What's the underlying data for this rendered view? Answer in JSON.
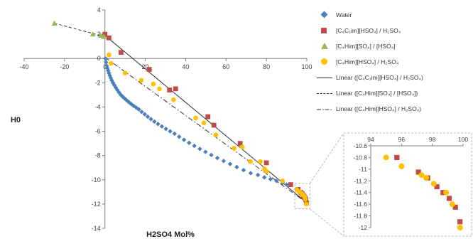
{
  "chart_data": {
    "type": "scatter",
    "xlabel": "H2SO4 Mol%",
    "ylabel": "H0",
    "xlim": [
      -40,
      100
    ],
    "ylim": [
      -14,
      4
    ],
    "x_ticks": [
      -40,
      -20,
      0,
      20,
      40,
      60,
      80,
      100
    ],
    "y_ticks": [
      4,
      2,
      0,
      -2,
      -4,
      -6,
      -8,
      -10,
      -12,
      -14
    ],
    "grid": false,
    "legend_position": "right",
    "series": [
      {
        "name": "Water",
        "marker": "diamond",
        "color": "#4a7ebb",
        "x": [
          0.3,
          0.6,
          0.9,
          1.2,
          1.6,
          2.0,
          2.4,
          2.9,
          3.4,
          4.0,
          4.7,
          5.4,
          6.2,
          7.0,
          7.9,
          8.8,
          9.8,
          10.8,
          11.9,
          13.0,
          14.2,
          15.5,
          16.8,
          18.2,
          19.7,
          21.2,
          22.8,
          24.5,
          26.3,
          28.2,
          30.2,
          32.3,
          34.5,
          36.8,
          39.2,
          41.7,
          44.3,
          47.0,
          49.8,
          52.7,
          55.7,
          58.8,
          62.0,
          65.3,
          68.7,
          72.2,
          75.8,
          79.0,
          82.0,
          85.0,
          88.0,
          90.0
        ],
        "y": [
          0.0,
          -0.3,
          -0.6,
          -0.8,
          -1.0,
          -1.2,
          -1.4,
          -1.6,
          -1.8,
          -2.0,
          -2.2,
          -2.4,
          -2.6,
          -2.8,
          -3.0,
          -3.15,
          -3.3,
          -3.45,
          -3.6,
          -3.75,
          -3.9,
          -4.05,
          -4.2,
          -4.4,
          -4.6,
          -4.8,
          -5.0,
          -5.2,
          -5.4,
          -5.6,
          -5.8,
          -6.0,
          -6.2,
          -6.45,
          -6.7,
          -6.95,
          -7.2,
          -7.45,
          -7.7,
          -7.95,
          -8.2,
          -8.45,
          -8.7,
          -8.95,
          -9.2,
          -9.45,
          -9.6,
          -9.8,
          -9.95,
          -10.1,
          -10.25,
          -10.4
        ]
      },
      {
        "name": "[C₄C₁im][HSO₄] / H₂SO₄",
        "marker": "square",
        "color": "#be4b48",
        "x": [
          0,
          2,
          8,
          22,
          32,
          35,
          51,
          54,
          67,
          80,
          92,
          95.7,
          97.1,
          97.7,
          98.3,
          98.7,
          99.1,
          99.5,
          99.8
        ],
        "y": [
          2.0,
          1.7,
          0.5,
          -0.9,
          -2.6,
          -2.5,
          -4.8,
          -5.5,
          -7.0,
          -8.6,
          -10.4,
          -10.8,
          -11.05,
          -11.15,
          -11.3,
          -11.4,
          -11.5,
          -11.65,
          -11.9
        ]
      },
      {
        "name": "[C₄Him][SO₄] / [HSO₄]",
        "marker": "triangle",
        "color": "#98b954",
        "x": [
          -25,
          -6,
          -2,
          -0.5
        ],
        "y": [
          2.9,
          2.0,
          1.9,
          1.8
        ]
      },
      {
        "name": "[C₄Him][HSO₄] / H₂SO₄",
        "marker": "circle",
        "color": "#ffc000",
        "x": [
          2,
          3,
          10,
          18,
          24,
          27,
          34,
          45,
          49,
          55,
          64,
          68,
          72,
          77,
          79,
          80,
          88,
          95,
          96,
          97.3,
          97.6,
          98.1,
          98.9,
          99.3,
          99.8
        ],
        "y": [
          0.3,
          -0.4,
          -1.2,
          -1.8,
          -2.1,
          -2.5,
          -3.4,
          -4.9,
          -5.3,
          -6.3,
          -7.4,
          -7.3,
          -8.5,
          -8.5,
          -9.1,
          -9.3,
          -10.1,
          -10.8,
          -10.95,
          -11.1,
          -11.15,
          -11.25,
          -11.4,
          -11.6,
          -12.0
        ]
      }
    ],
    "trendlines": [
      {
        "name": "Linear ([C₄C₁im][HSO₄] / H₂SO₄)",
        "style": "solid",
        "color": "#333333",
        "x": [
          0,
          100
        ],
        "y": [
          1.9,
          -11.9
        ]
      },
      {
        "name": "Linear ([C₄Him][SO₄] / [HSO₄])",
        "style": "dashed",
        "color": "#333333",
        "x": [
          -25,
          0
        ],
        "y": [
          2.9,
          1.8
        ]
      },
      {
        "name": "Linear ([C₄Him][HSO₄] / H₂SO₄)",
        "style": "dashdot",
        "color": "#333333",
        "x": [
          0,
          100
        ],
        "y": [
          0.1,
          -11.9
        ]
      }
    ],
    "inset": {
      "xlim": [
        94,
        100
      ],
      "ylim": [
        -12,
        -10.6
      ],
      "x_ticks": [
        94,
        96,
        98,
        100
      ],
      "y_ticks": [
        -10.6,
        -10.8,
        -11,
        -11.2,
        -11.4,
        -11.6,
        -11.8,
        -12
      ]
    }
  }
}
